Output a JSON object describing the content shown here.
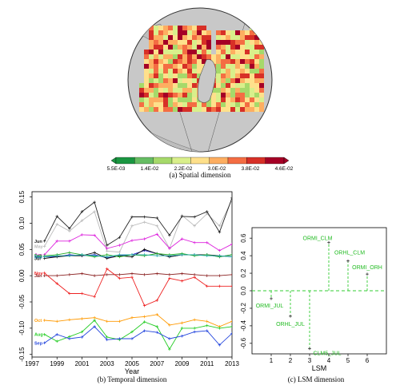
{
  "captions": {
    "a": "(a) Spatial dimension",
    "b": "(b) Temporal dimension",
    "c": "(c) LSM dimension"
  },
  "colorbar": {
    "labels": [
      "5.5E-03",
      "1.4E-02",
      "2.2E-02",
      "3.0E-02",
      "3.8E-02",
      "4.6E-02"
    ],
    "colors": [
      "#1a9641",
      "#66bd63",
      "#a6d96a",
      "#d9ef8b",
      "#fee08b",
      "#fdae61",
      "#f46d43",
      "#d73027",
      "#a50026"
    ]
  },
  "chart_data": [
    {
      "type": "heatmap",
      "title": "(a) Spatial dimension",
      "description_colorscale": [
        "5.5E-03",
        "1.4E-02",
        "2.2E-02",
        "3.0E-02",
        "3.8E-02",
        "4.6E-02"
      ]
    },
    {
      "type": "line",
      "title": "(b) Temporal dimension",
      "xlabel": "Year",
      "ylabel": "",
      "xlim": [
        1997,
        2013
      ],
      "ylim": [
        -0.155,
        0.16
      ],
      "x_ticks": [
        "1997",
        "1999",
        "2001",
        "2003",
        "2005",
        "2007",
        "2009",
        "2011",
        "2013"
      ],
      "y_ticks": [
        "-0.15",
        "-0.10",
        "-0.05",
        "0.00",
        "0.05",
        "0.10",
        "0.15"
      ],
      "x": [
        1998,
        1999,
        2000,
        2001,
        2002,
        2003,
        2004,
        2005,
        2006,
        2007,
        2008,
        2009,
        2010,
        2011,
        2012,
        2013
      ],
      "series": [
        {
          "name": "May",
          "color": "#bbbbbb",
          "values": [
            0.056,
            0.098,
            0.085,
            0.105,
            0.122,
            0.047,
            0.045,
            0.095,
            0.102,
            0.095,
            0.052,
            0.115,
            0.095,
            0.118,
            0.095,
            0.145
          ]
        },
        {
          "name": "Jun",
          "color": "#222222",
          "values": [
            0.066,
            0.113,
            0.09,
            0.122,
            0.14,
            0.058,
            0.073,
            0.112,
            0.112,
            0.11,
            0.077,
            0.113,
            0.112,
            0.122,
            0.083,
            0.148
          ]
        },
        {
          "name": "Apr",
          "color": "#dd22dd",
          "values": [
            0.04,
            0.066,
            0.066,
            0.078,
            0.077,
            0.052,
            0.058,
            0.067,
            0.07,
            0.079,
            0.052,
            0.07,
            0.063,
            0.063,
            0.048,
            0.06
          ]
        },
        {
          "name": "Mar",
          "color": "#2222cc",
          "values": [
            0.036,
            0.036,
            0.04,
            0.038,
            0.04,
            0.034,
            0.038,
            0.04,
            0.048,
            0.042,
            0.036,
            0.04,
            0.04,
            0.04,
            0.036,
            0.04
          ]
        },
        {
          "name": "Jul",
          "color": "#111111",
          "values": [
            0.033,
            0.036,
            0.038,
            0.038,
            0.044,
            0.033,
            0.038,
            0.036,
            0.05,
            0.042,
            0.036,
            0.04,
            0.04,
            0.04,
            0.038,
            0.036
          ]
        },
        {
          "name": "Feb",
          "color": "#22aa22",
          "values": [
            0.038,
            0.04,
            0.044,
            0.04,
            0.036,
            0.04,
            0.036,
            0.04,
            0.038,
            0.042,
            0.04,
            0.042,
            0.038,
            0.04,
            0.036,
            0.04
          ]
        },
        {
          "name": "Dec",
          "color": "#22aaaa",
          "values": [
            0.036,
            0.038,
            0.038,
            0.04,
            0.038,
            0.036,
            0.04,
            0.04,
            0.04,
            0.038,
            0.038,
            0.04,
            0.04,
            0.038,
            0.038,
            0.036
          ]
        },
        {
          "name": "Jan",
          "color": "#8b2222",
          "values": [
            0.0,
            0.0,
            0.002,
            0.004,
            0.0,
            0.002,
            0.002,
            0.004,
            0.002,
            0.004,
            0.002,
            0.004,
            0.002,
            0.0,
            0.0,
            0.002
          ]
        },
        {
          "name": "Nov",
          "color": "#ee2222",
          "values": [
            0.005,
            -0.015,
            -0.034,
            -0.034,
            -0.04,
            0.013,
            -0.005,
            -0.003,
            -0.057,
            -0.047,
            -0.005,
            -0.01,
            -0.003,
            -0.02,
            -0.02,
            -0.02
          ]
        },
        {
          "name": "Oct",
          "color": "#ff9900",
          "values": [
            -0.085,
            -0.087,
            -0.084,
            -0.082,
            -0.08,
            -0.087,
            -0.087,
            -0.08,
            -0.078,
            -0.074,
            -0.094,
            -0.09,
            -0.084,
            -0.087,
            -0.097,
            -0.087
          ]
        },
        {
          "name": "Aug",
          "color": "#22cc22",
          "values": [
            -0.112,
            -0.125,
            -0.116,
            -0.107,
            -0.085,
            -0.117,
            -0.122,
            -0.107,
            -0.088,
            -0.097,
            -0.14,
            -0.1,
            -0.1,
            -0.095,
            -0.1,
            -0.097
          ]
        },
        {
          "name": "Sep",
          "color": "#2244dd",
          "values": [
            -0.128,
            -0.112,
            -0.12,
            -0.117,
            -0.097,
            -0.122,
            -0.12,
            -0.12,
            -0.105,
            -0.108,
            -0.12,
            -0.115,
            -0.107,
            -0.105,
            -0.132,
            -0.11
          ]
        }
      ]
    },
    {
      "type": "scatter",
      "title": "(c) LSM dimension",
      "xlabel": "LSM",
      "ylabel": "",
      "xlim": [
        0,
        7
      ],
      "ylim": [
        -0.72,
        0.72
      ],
      "x_ticks": [
        "1",
        "2",
        "3",
        "4",
        "5",
        "6"
      ],
      "y_ticks": [
        "-0.6",
        "-0.4",
        "-0.2",
        "0.0",
        "0.2",
        "0.4",
        "0.6"
      ],
      "points": [
        {
          "label": "ORMI_JUL",
          "x": 1,
          "y": -0.09
        },
        {
          "label": "ORHL_JUL",
          "x": 2,
          "y": -0.29
        },
        {
          "label": "CLM5_JUL",
          "x": 3,
          "y": -0.66
        },
        {
          "label": "ORMI_CLM",
          "x": 4,
          "y": 0.55
        },
        {
          "label": "ORHL_CLM",
          "x": 5,
          "y": 0.34
        },
        {
          "label": "ORMI_ORH",
          "x": 6,
          "y": 0.19
        }
      ]
    }
  ]
}
